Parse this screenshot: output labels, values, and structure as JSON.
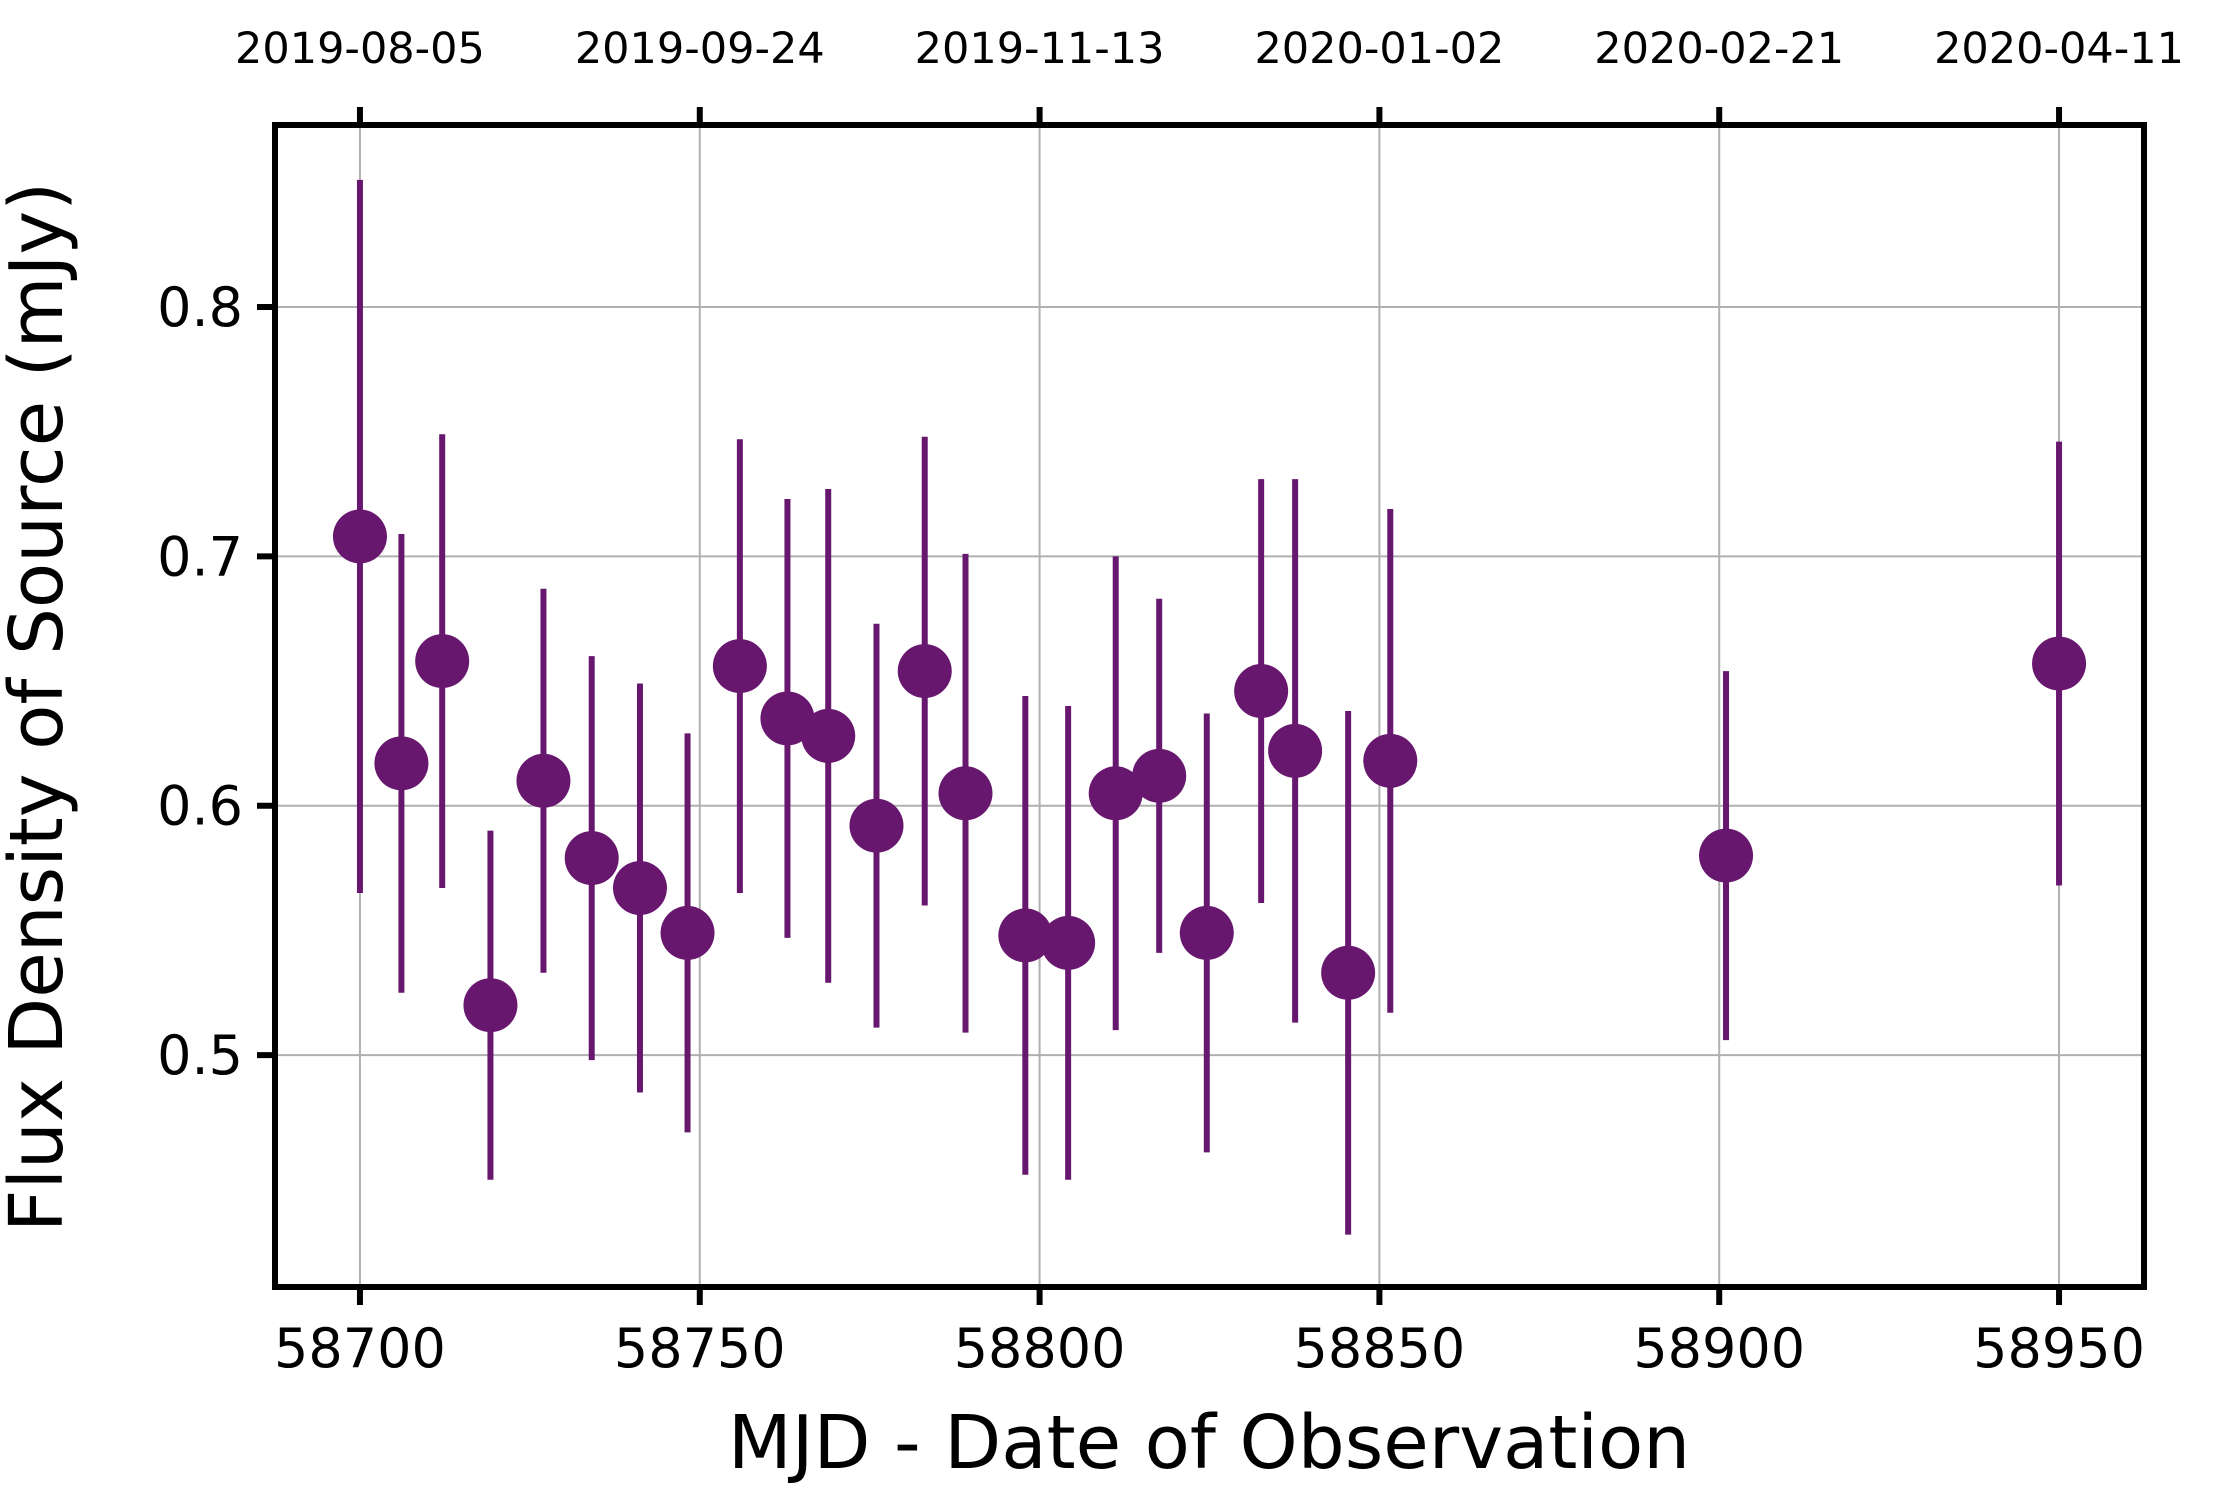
{
  "chart_data": {
    "type": "scatter",
    "xlabel": "MJD - Date of Observation",
    "ylabel": "Flux Density of Source (mJy)",
    "xlim": [
      58687.5,
      58962.5
    ],
    "ylim": [
      0.407,
      0.873
    ],
    "x_ticks": [
      "58700",
      "58750",
      "58800",
      "58850",
      "58900",
      "58950"
    ],
    "y_ticks": [
      "0.5",
      "0.6",
      "0.7",
      "0.8"
    ],
    "top_ticks": [
      "2019-08-05",
      "2019-09-24",
      "2019-11-13",
      "2020-01-02",
      "2020-02-21",
      "2020-04-11"
    ],
    "grid": true,
    "marker_color": "#68176e",
    "series": [
      {
        "points": [
          {
            "x": 58700.0,
            "y": 0.708,
            "err": 0.143
          },
          {
            "x": 58706.1,
            "y": 0.617,
            "err": 0.092
          },
          {
            "x": 58712.1,
            "y": 0.658,
            "err": 0.091
          },
          {
            "x": 58719.2,
            "y": 0.52,
            "err": 0.07
          },
          {
            "x": 58727.0,
            "y": 0.61,
            "err": 0.077
          },
          {
            "x": 58734.1,
            "y": 0.579,
            "err": 0.081
          },
          {
            "x": 58741.2,
            "y": 0.567,
            "err": 0.082
          },
          {
            "x": 58748.2,
            "y": 0.549,
            "err": 0.08
          },
          {
            "x": 58755.9,
            "y": 0.656,
            "err": 0.091
          },
          {
            "x": 58762.9,
            "y": 0.635,
            "err": 0.088
          },
          {
            "x": 58768.9,
            "y": 0.628,
            "err": 0.099
          },
          {
            "x": 58776.0,
            "y": 0.592,
            "err": 0.081
          },
          {
            "x": 58783.1,
            "y": 0.654,
            "err": 0.094
          },
          {
            "x": 58789.1,
            "y": 0.605,
            "err": 0.096
          },
          {
            "x": 58797.9,
            "y": 0.548,
            "err": 0.096
          },
          {
            "x": 58804.2,
            "y": 0.545,
            "err": 0.095
          },
          {
            "x": 58811.2,
            "y": 0.605,
            "err": 0.095
          },
          {
            "x": 58817.6,
            "y": 0.612,
            "err": 0.071
          },
          {
            "x": 58824.6,
            "y": 0.549,
            "err": 0.088
          },
          {
            "x": 58832.6,
            "y": 0.646,
            "err": 0.085
          },
          {
            "x": 58837.6,
            "y": 0.622,
            "err": 0.109
          },
          {
            "x": 58845.4,
            "y": 0.533,
            "err": 0.105
          },
          {
            "x": 58851.6,
            "y": 0.618,
            "err": 0.101
          },
          {
            "x": 58901.0,
            "y": 0.58,
            "err": 0.074
          },
          {
            "x": 58950.0,
            "y": 0.657,
            "err": 0.089
          }
        ]
      }
    ]
  }
}
